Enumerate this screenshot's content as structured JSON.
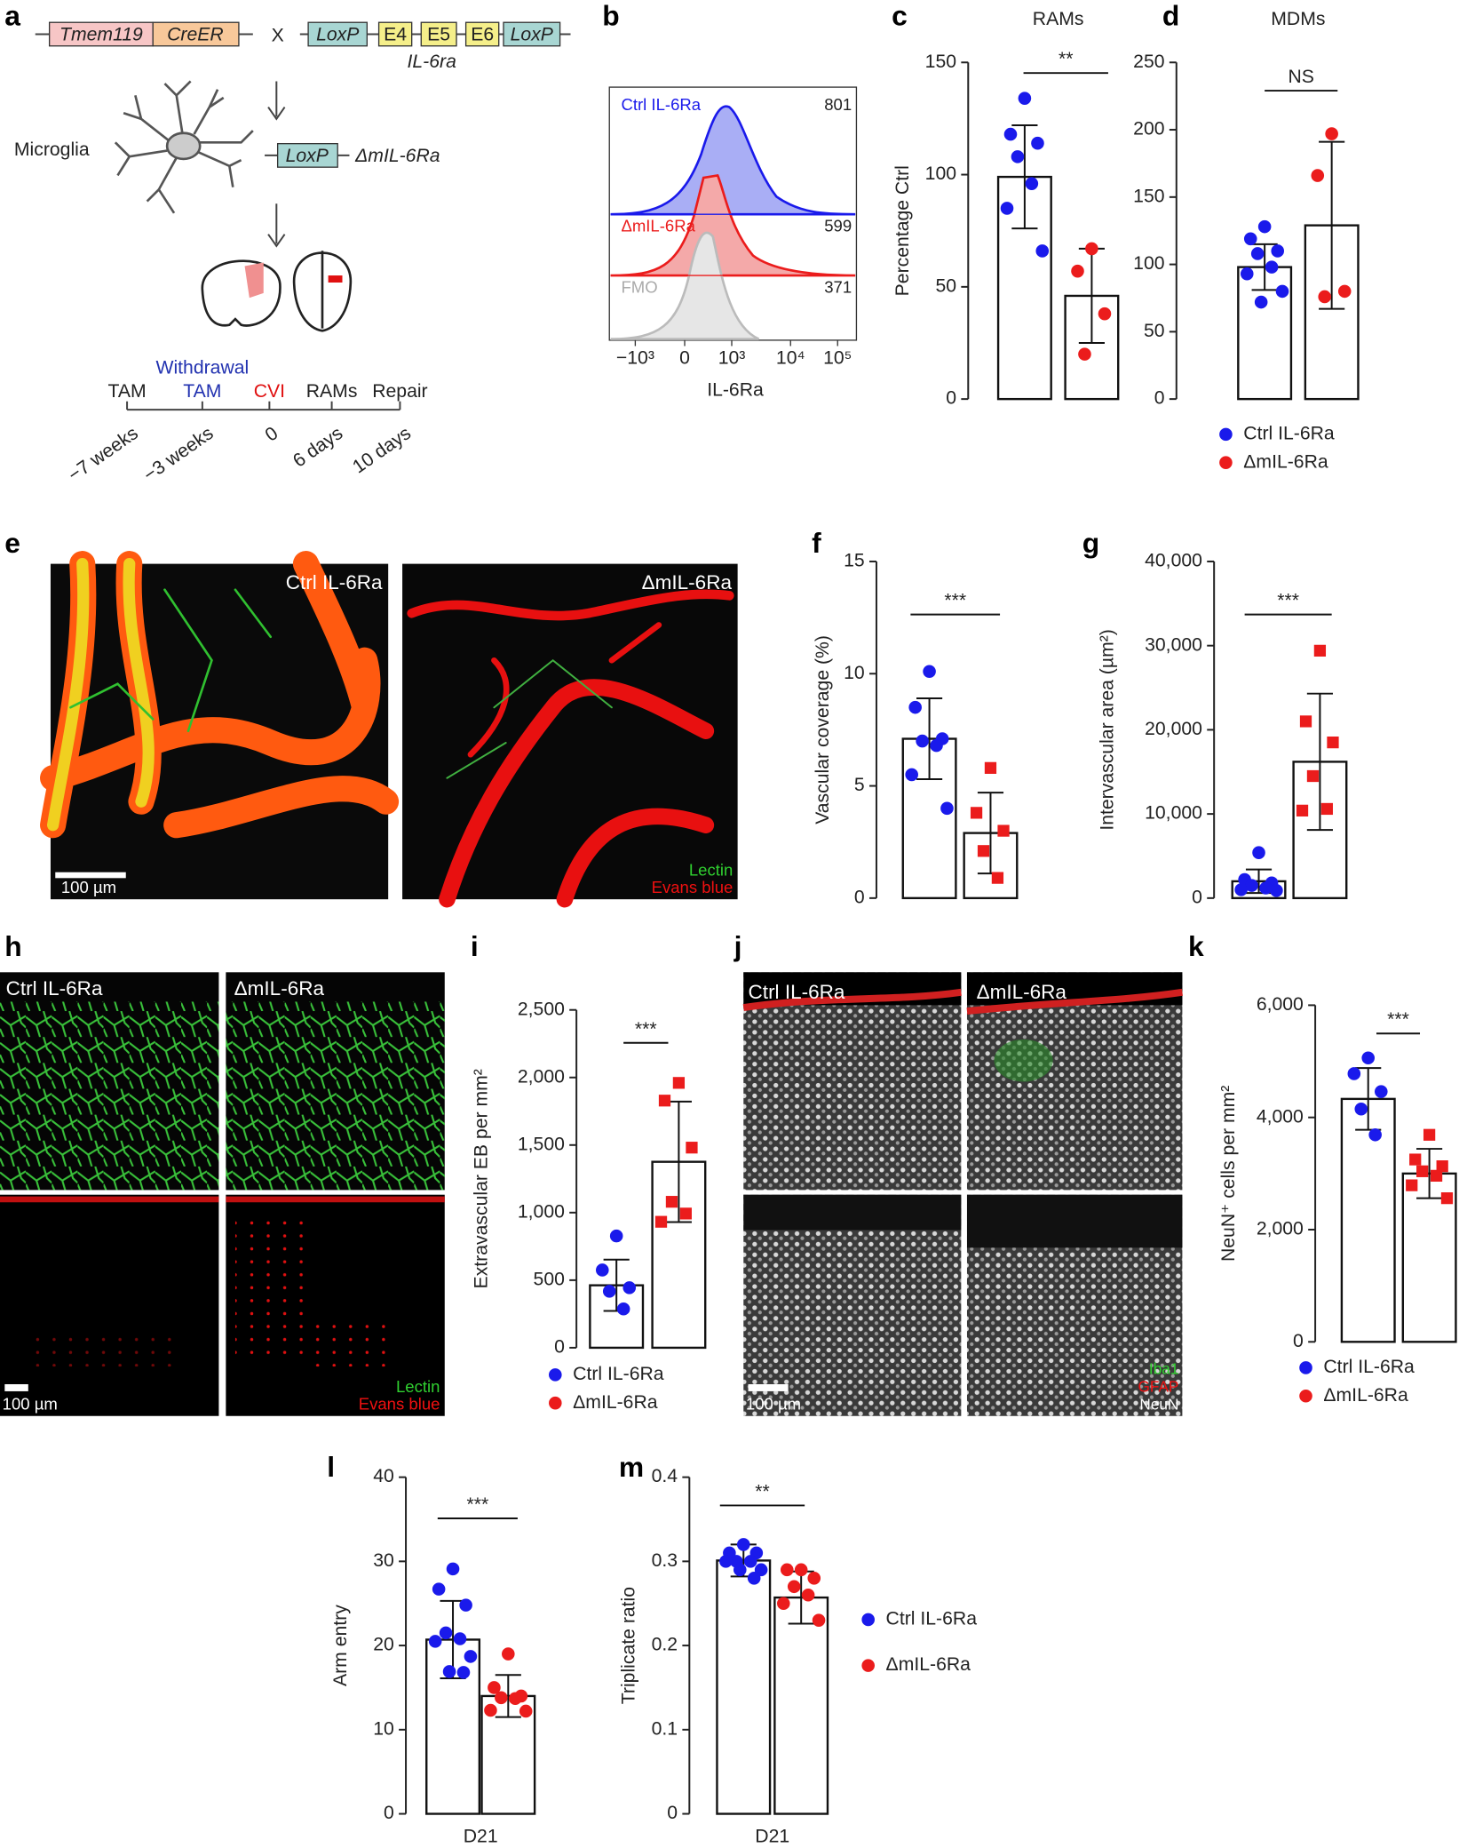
{
  "panels": [
    "a",
    "b",
    "c",
    "d",
    "e",
    "f",
    "g",
    "h",
    "i",
    "j",
    "k",
    "l",
    "m"
  ],
  "schematic": {
    "construct": [
      "Tmem119",
      "CreER"
    ],
    "cross": "X",
    "floxed": [
      "LoxP",
      "E4",
      "E5",
      "E6",
      "LoxP"
    ],
    "gene": "IL-6ra",
    "cell": "Microglia",
    "deleted": [
      "LoxP",
      "ΔmIL-6Ra"
    ],
    "timeline": {
      "withdrawal": "Withdrawal",
      "events": [
        "TAM",
        "TAM",
        "CVI",
        "RAMs",
        "Repair"
      ],
      "times": [
        "−7 weeks",
        "−3 weeks",
        "0",
        "6 days",
        "10 days"
      ]
    }
  },
  "facs": {
    "series": [
      {
        "name": "Ctrl IL-6Ra",
        "value": 801
      },
      {
        "name": "ΔmIL-6Ra",
        "value": 599
      },
      {
        "name": "FMO",
        "value": 371
      }
    ],
    "xticks": [
      "−10³",
      "0",
      "10³",
      "10⁴",
      "10⁵"
    ],
    "x_label": "IL-6Ra"
  },
  "images": {
    "e": {
      "left": "Ctrl IL-6Ra",
      "right": "ΔmIL-6Ra",
      "scale_bar": "100 µm",
      "stains": [
        "Lectin",
        "Evans blue"
      ]
    },
    "h": {
      "left": "Ctrl IL-6Ra",
      "right": "ΔmIL-6Ra",
      "scale_bar": "100 µm",
      "stains": [
        "Lectin",
        "Evans blue"
      ]
    },
    "j": {
      "left": "Ctrl IL-6Ra",
      "right": "ΔmIL-6Ra",
      "scale_bar": "100 µm",
      "stains": [
        "Iba1",
        "GFAP",
        "NeuN"
      ]
    }
  },
  "chart_data": [
    {
      "type": "bar",
      "title": "RAMs",
      "y_label": "Percentage Ctrl",
      "significance": "**",
      "ylim": [
        0,
        150
      ],
      "yticks": [
        0,
        50,
        100,
        150
      ],
      "series": [
        {
          "color": "#1a1aeb",
          "marker": "circle",
          "values": [
            99
          ],
          "errors": [
            23
          ],
          "points": [
            134,
            118,
            114,
            108,
            96,
            85,
            66
          ]
        },
        {
          "color": "#eb1c1c",
          "marker": "circle",
          "values": [
            46
          ],
          "errors": [
            21
          ],
          "points": [
            67,
            57,
            38,
            20
          ]
        }
      ]
    },
    {
      "type": "bar",
      "title": "MDMs",
      "significance": "NS",
      "ylim": [
        0,
        250
      ],
      "yticks": [
        0,
        50,
        100,
        150,
        200,
        250
      ],
      "legend": true,
      "series": [
        {
          "name": "Ctrl IL-6Ra",
          "color": "#1a1aeb",
          "marker": "circle",
          "values": [
            98
          ],
          "errors": [
            17
          ],
          "points": [
            128,
            119,
            110,
            108,
            98,
            93,
            80,
            72
          ]
        },
        {
          "name": "ΔmIL-6Ra",
          "color": "#eb1c1c",
          "marker": "circle",
          "values": [
            129
          ],
          "errors": [
            62
          ],
          "points": [
            197,
            166,
            80,
            76
          ]
        }
      ]
    },
    {
      "type": "bar",
      "y_label": "Vascular coverage (%)",
      "significance": "***",
      "ylim": [
        0,
        15
      ],
      "yticks": [
        0,
        5,
        10,
        15
      ],
      "series": [
        {
          "color": "#1a1aeb",
          "marker": "circle",
          "values": [
            7.1
          ],
          "errors": [
            1.8
          ],
          "points": [
            10.1,
            8.5,
            7.1,
            7.0,
            6.8,
            5.5,
            4.0
          ]
        },
        {
          "color": "#eb1c1c",
          "marker": "square",
          "values": [
            2.9
          ],
          "errors": [
            1.8
          ],
          "points": [
            5.8,
            3.8,
            3.0,
            2.1,
            0.9
          ]
        }
      ]
    },
    {
      "type": "bar",
      "y_label": "Intervascular area (µm²)",
      "significance": "***",
      "ylim": [
        0,
        40000
      ],
      "yticks": [
        0,
        {
          "value": 10000,
          "label": "10,000"
        },
        {
          "value": 20000,
          "label": "20,000"
        },
        {
          "value": 30000,
          "label": "30,000"
        },
        {
          "value": 40000,
          "label": "40,000"
        }
      ],
      "series": [
        {
          "color": "#1a1aeb",
          "marker": "circle",
          "values": [
            2000
          ],
          "errors": [
            1400
          ],
          "points": [
            5400,
            2200,
            1800,
            1500,
            1200,
            1000,
            900
          ]
        },
        {
          "color": "#eb1c1c",
          "marker": "square",
          "values": [
            16200
          ],
          "errors": [
            8100
          ],
          "points": [
            29400,
            21000,
            18500,
            14500,
            10600,
            10400
          ]
        }
      ]
    },
    {
      "type": "bar",
      "y_label": "Extravascular EB per mm²",
      "significance": "***",
      "ylim": [
        0,
        2500
      ],
      "legend": true,
      "yticks": [
        0,
        500,
        {
          "value": 1000,
          "label": "1,000"
        },
        {
          "value": 1500,
          "label": "1,500"
        },
        {
          "value": 2000,
          "label": "2,000"
        },
        {
          "value": 2500,
          "label": "2,500"
        }
      ],
      "series": [
        {
          "name": "Ctrl IL-6Ra",
          "color": "#1a1aeb",
          "marker": "circle",
          "values": [
            462
          ],
          "errors": [
            190
          ],
          "points": [
            827,
            575,
            444,
            418,
            287
          ]
        },
        {
          "name": "ΔmIL-6Ra",
          "color": "#eb1c1c",
          "marker": "square",
          "values": [
            1376
          ],
          "errors": [
            446
          ],
          "points": [
            1960,
            1829,
            1481,
            1080,
            993,
            932
          ]
        }
      ]
    },
    {
      "type": "bar",
      "y_label": "NeuN⁺ cells per mm²",
      "significance": "***",
      "ylim": [
        0,
        6000
      ],
      "legend": true,
      "yticks": [
        0,
        {
          "value": 2000,
          "label": "2,000"
        },
        {
          "value": 4000,
          "label": "4,000"
        },
        {
          "value": 6000,
          "label": "6,000"
        }
      ],
      "series": [
        {
          "name": "Ctrl IL-6Ra",
          "color": "#1a1aeb",
          "marker": "circle",
          "values": [
            4330
          ],
          "errors": [
            550
          ],
          "points": [
            5060,
            4780,
            4460,
            4150,
            3690
          ]
        },
        {
          "name": "ΔmIL-6Ra",
          "color": "#eb1c1c",
          "marker": "square",
          "values": [
            3000
          ],
          "errors": [
            440
          ],
          "points": [
            3690,
            3250,
            3130,
            3040,
            2960,
            2790,
            2560
          ]
        }
      ]
    },
    {
      "type": "bar",
      "y_label": "Arm entry",
      "significance": "***",
      "ylim": [
        0,
        40
      ],
      "yticks": [
        0,
        10,
        20,
        30,
        40
      ],
      "categories": [
        "D21"
      ],
      "series": [
        {
          "color": "#1a1aeb",
          "marker": "circle",
          "values": [
            20.7
          ],
          "errors": [
            4.6
          ],
          "points": [
            29.1,
            26.7,
            24.8,
            21.5,
            20.8,
            20.5,
            18.7,
            16.9,
            16.8
          ]
        },
        {
          "color": "#eb1c1c",
          "marker": "circle",
          "values": [
            14.0
          ],
          "errors": [
            2.5
          ],
          "points": [
            19.0,
            15.0,
            14.0,
            13.8,
            13.7,
            12.3,
            12.2
          ]
        }
      ]
    },
    {
      "type": "bar",
      "y_label": "Triplicate ratio",
      "significance": "**",
      "ylim": [
        0,
        0.4
      ],
      "yticks": [
        0,
        0.1,
        0.2,
        0.3,
        0.4
      ],
      "categories": [
        "D21"
      ],
      "legend": true,
      "series": [
        {
          "name": "Ctrl IL-6Ra",
          "color": "#1a1aeb",
          "marker": "circle",
          "values": [
            0.301
          ],
          "errors": [
            0.019
          ],
          "points": [
            0.32,
            0.31,
            0.31,
            0.3,
            0.3,
            0.3,
            0.29,
            0.29,
            0.28
          ]
        },
        {
          "name": "ΔmIL-6Ra",
          "color": "#eb1c1c",
          "marker": "circle",
          "values": [
            0.257
          ],
          "errors": [
            0.031
          ],
          "points": [
            0.29,
            0.29,
            0.28,
            0.27,
            0.26,
            0.25,
            0.23
          ]
        }
      ]
    }
  ]
}
